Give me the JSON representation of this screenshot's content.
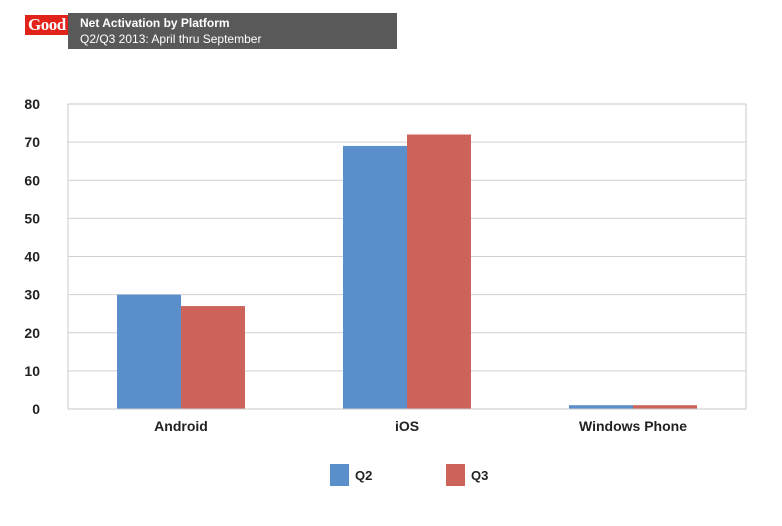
{
  "header": {
    "logo_text": "Good",
    "title": "Net Activation by Platform",
    "subtitle": "Q2/Q3 2013: April thru September"
  },
  "chart_data": {
    "type": "bar",
    "title": "Net Activation by Platform",
    "subtitle": "Q2/Q3 2013: April thru September",
    "xlabel": "",
    "ylabel": "",
    "categories": [
      "Android",
      "iOS",
      "Windows Phone"
    ],
    "series": [
      {
        "name": "Q2",
        "values": [
          30,
          69,
          1
        ],
        "color": "#5b8fcb"
      },
      {
        "name": "Q3",
        "values": [
          27,
          72,
          1
        ],
        "color": "#cd645c"
      }
    ],
    "ylim": [
      0,
      80
    ],
    "yticks": [
      "0",
      "10",
      "20",
      "30",
      "40",
      "50",
      "60",
      "70",
      "80"
    ],
    "grid": true,
    "legend_position": "bottom"
  }
}
